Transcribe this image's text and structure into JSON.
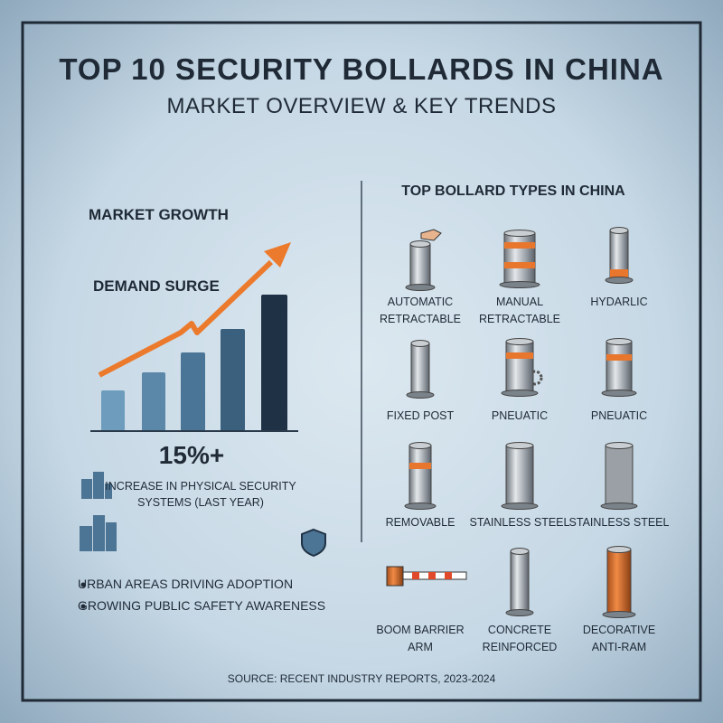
{
  "header": {
    "title": "TOP 10 SECURITY BOLLARDS IN CHINA",
    "subtitle": "MARKET OVERVIEW & KEY TRENDS"
  },
  "market": {
    "heading": "MARKET GROWTH",
    "subheading": "DEMAND SURGE",
    "stat": "15%+",
    "stat_text": [
      "INCREASE IN PHYSICAL SECURITY",
      "SYSTEMS (LAST YEAR)"
    ],
    "bullets": [
      "URBAN AREAS DRIVING ADOPTION",
      "GROWING PUBLIC SAFETY AWARENESS"
    ]
  },
  "types": {
    "title": "TOP BOLLARD TYPES IN CHINA",
    "items": [
      {
        "label": [
          "AUTOMATIC",
          "RETRACTABLE"
        ]
      },
      {
        "label": [
          "MANUAL",
          "RETRACTABLE"
        ]
      },
      {
        "label": [
          "HYDARLIC"
        ]
      },
      {
        "label": [
          "FIXED POST"
        ]
      },
      {
        "label": [
          "PNEUATIC"
        ]
      },
      {
        "label": [
          "PNEUATIC"
        ]
      },
      {
        "label": [
          "REMOVABLE"
        ]
      },
      {
        "label": [
          "STAINLESS STEEL"
        ]
      },
      {
        "label": [
          "STAINLESS STEEL"
        ]
      },
      {
        "label": [
          "BOOM BARRIER",
          "ARM"
        ]
      },
      {
        "label": [
          "CONCRETE",
          "REINFORCED"
        ]
      },
      {
        "label": [
          "DECORATIVE",
          "ANTI-RAM"
        ]
      }
    ]
  },
  "footer": {
    "source": "SOURCE: RECENT INDUSTRY REPORTS, 2023-2024"
  }
}
